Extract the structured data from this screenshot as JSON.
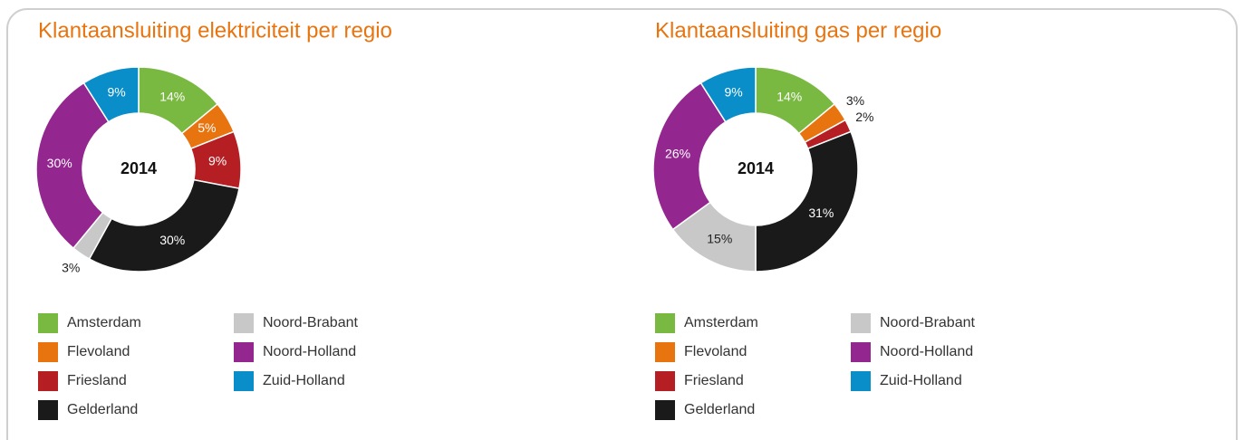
{
  "chart_data": [
    {
      "type": "donut",
      "title": "Klantaansluiting elektriciteit per regio",
      "center_label": "2014",
      "categories": [
        "Amsterdam",
        "Flevoland",
        "Friesland",
        "Gelderland",
        "Noord-Brabant",
        "Noord-Holland",
        "Zuid-Holland"
      ],
      "values": [
        14,
        5,
        9,
        30,
        3,
        30,
        9
      ],
      "value_labels": [
        "14%",
        "5%",
        "9%",
        "30%",
        "3%",
        "30%",
        "9%"
      ],
      "colors": [
        "#7ab941",
        "#e8740f",
        "#b51f24",
        "#1a1a1a",
        "#c8c8c8",
        "#93278f",
        "#0a8ec9"
      ]
    },
    {
      "type": "donut",
      "title": "Klantaansluiting gas per regio",
      "center_label": "2014",
      "categories": [
        "Amsterdam",
        "Flevoland",
        "Friesland",
        "Gelderland",
        "Noord-Brabant",
        "Noord-Holland",
        "Zuid-Holland"
      ],
      "values": [
        14,
        3,
        2,
        31,
        15,
        26,
        9
      ],
      "value_labels": [
        "14%",
        "3%",
        "2%",
        "31%",
        "15%",
        "26%",
        "9%"
      ],
      "colors": [
        "#7ab941",
        "#e8740f",
        "#b51f24",
        "#1a1a1a",
        "#c8c8c8",
        "#93278f",
        "#0a8ec9"
      ]
    }
  ]
}
